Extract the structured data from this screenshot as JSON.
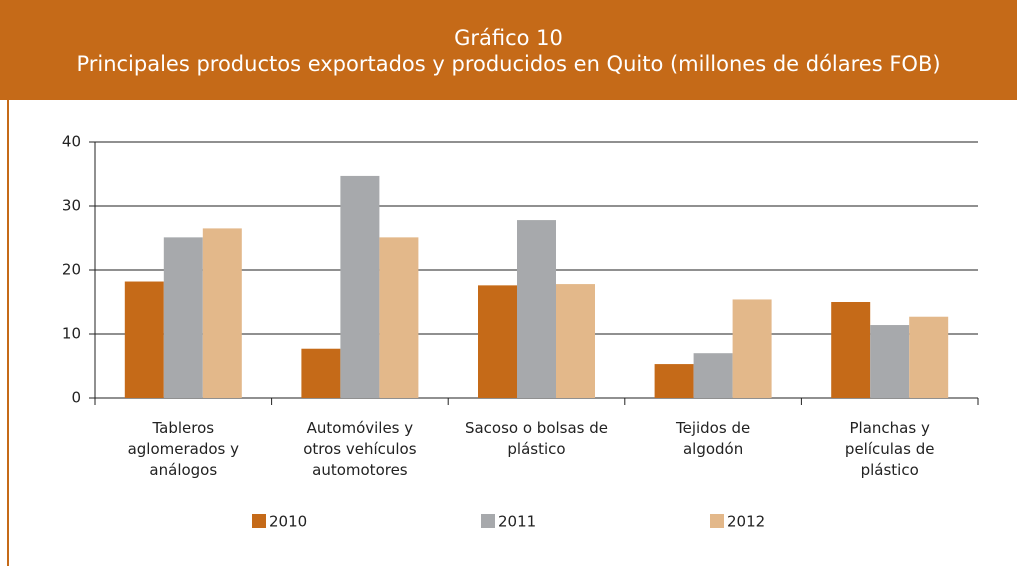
{
  "chart_data": {
    "type": "bar",
    "title": "Gráfico 10",
    "subtitle": "Principales productos exportados y producidos en Quito (millones de dólares FOB)",
    "categories": [
      "Tableros\naglomerados y\nanálogos",
      "Automóviles y\notros vehículos\nautomotores",
      "Sacoso o bolsas de\nplástico",
      "Tejidos de\nalgodón",
      "Planchas y\npelículas de\nplástico"
    ],
    "series": [
      {
        "name": "2010",
        "color": "#c56a18",
        "values": [
          18.2,
          7.7,
          17.6,
          5.3,
          15.0
        ]
      },
      {
        "name": "2011",
        "color": "#a7a9ac",
        "values": [
          25.1,
          34.7,
          27.8,
          7.0,
          11.4
        ]
      },
      {
        "name": "2012",
        "color": "#e3b88a",
        "values": [
          26.5,
          25.1,
          17.8,
          15.4,
          12.7
        ]
      }
    ],
    "ylim": [
      0,
      40
    ],
    "yticks": [
      0,
      10,
      20,
      30,
      40
    ],
    "grid": true
  }
}
